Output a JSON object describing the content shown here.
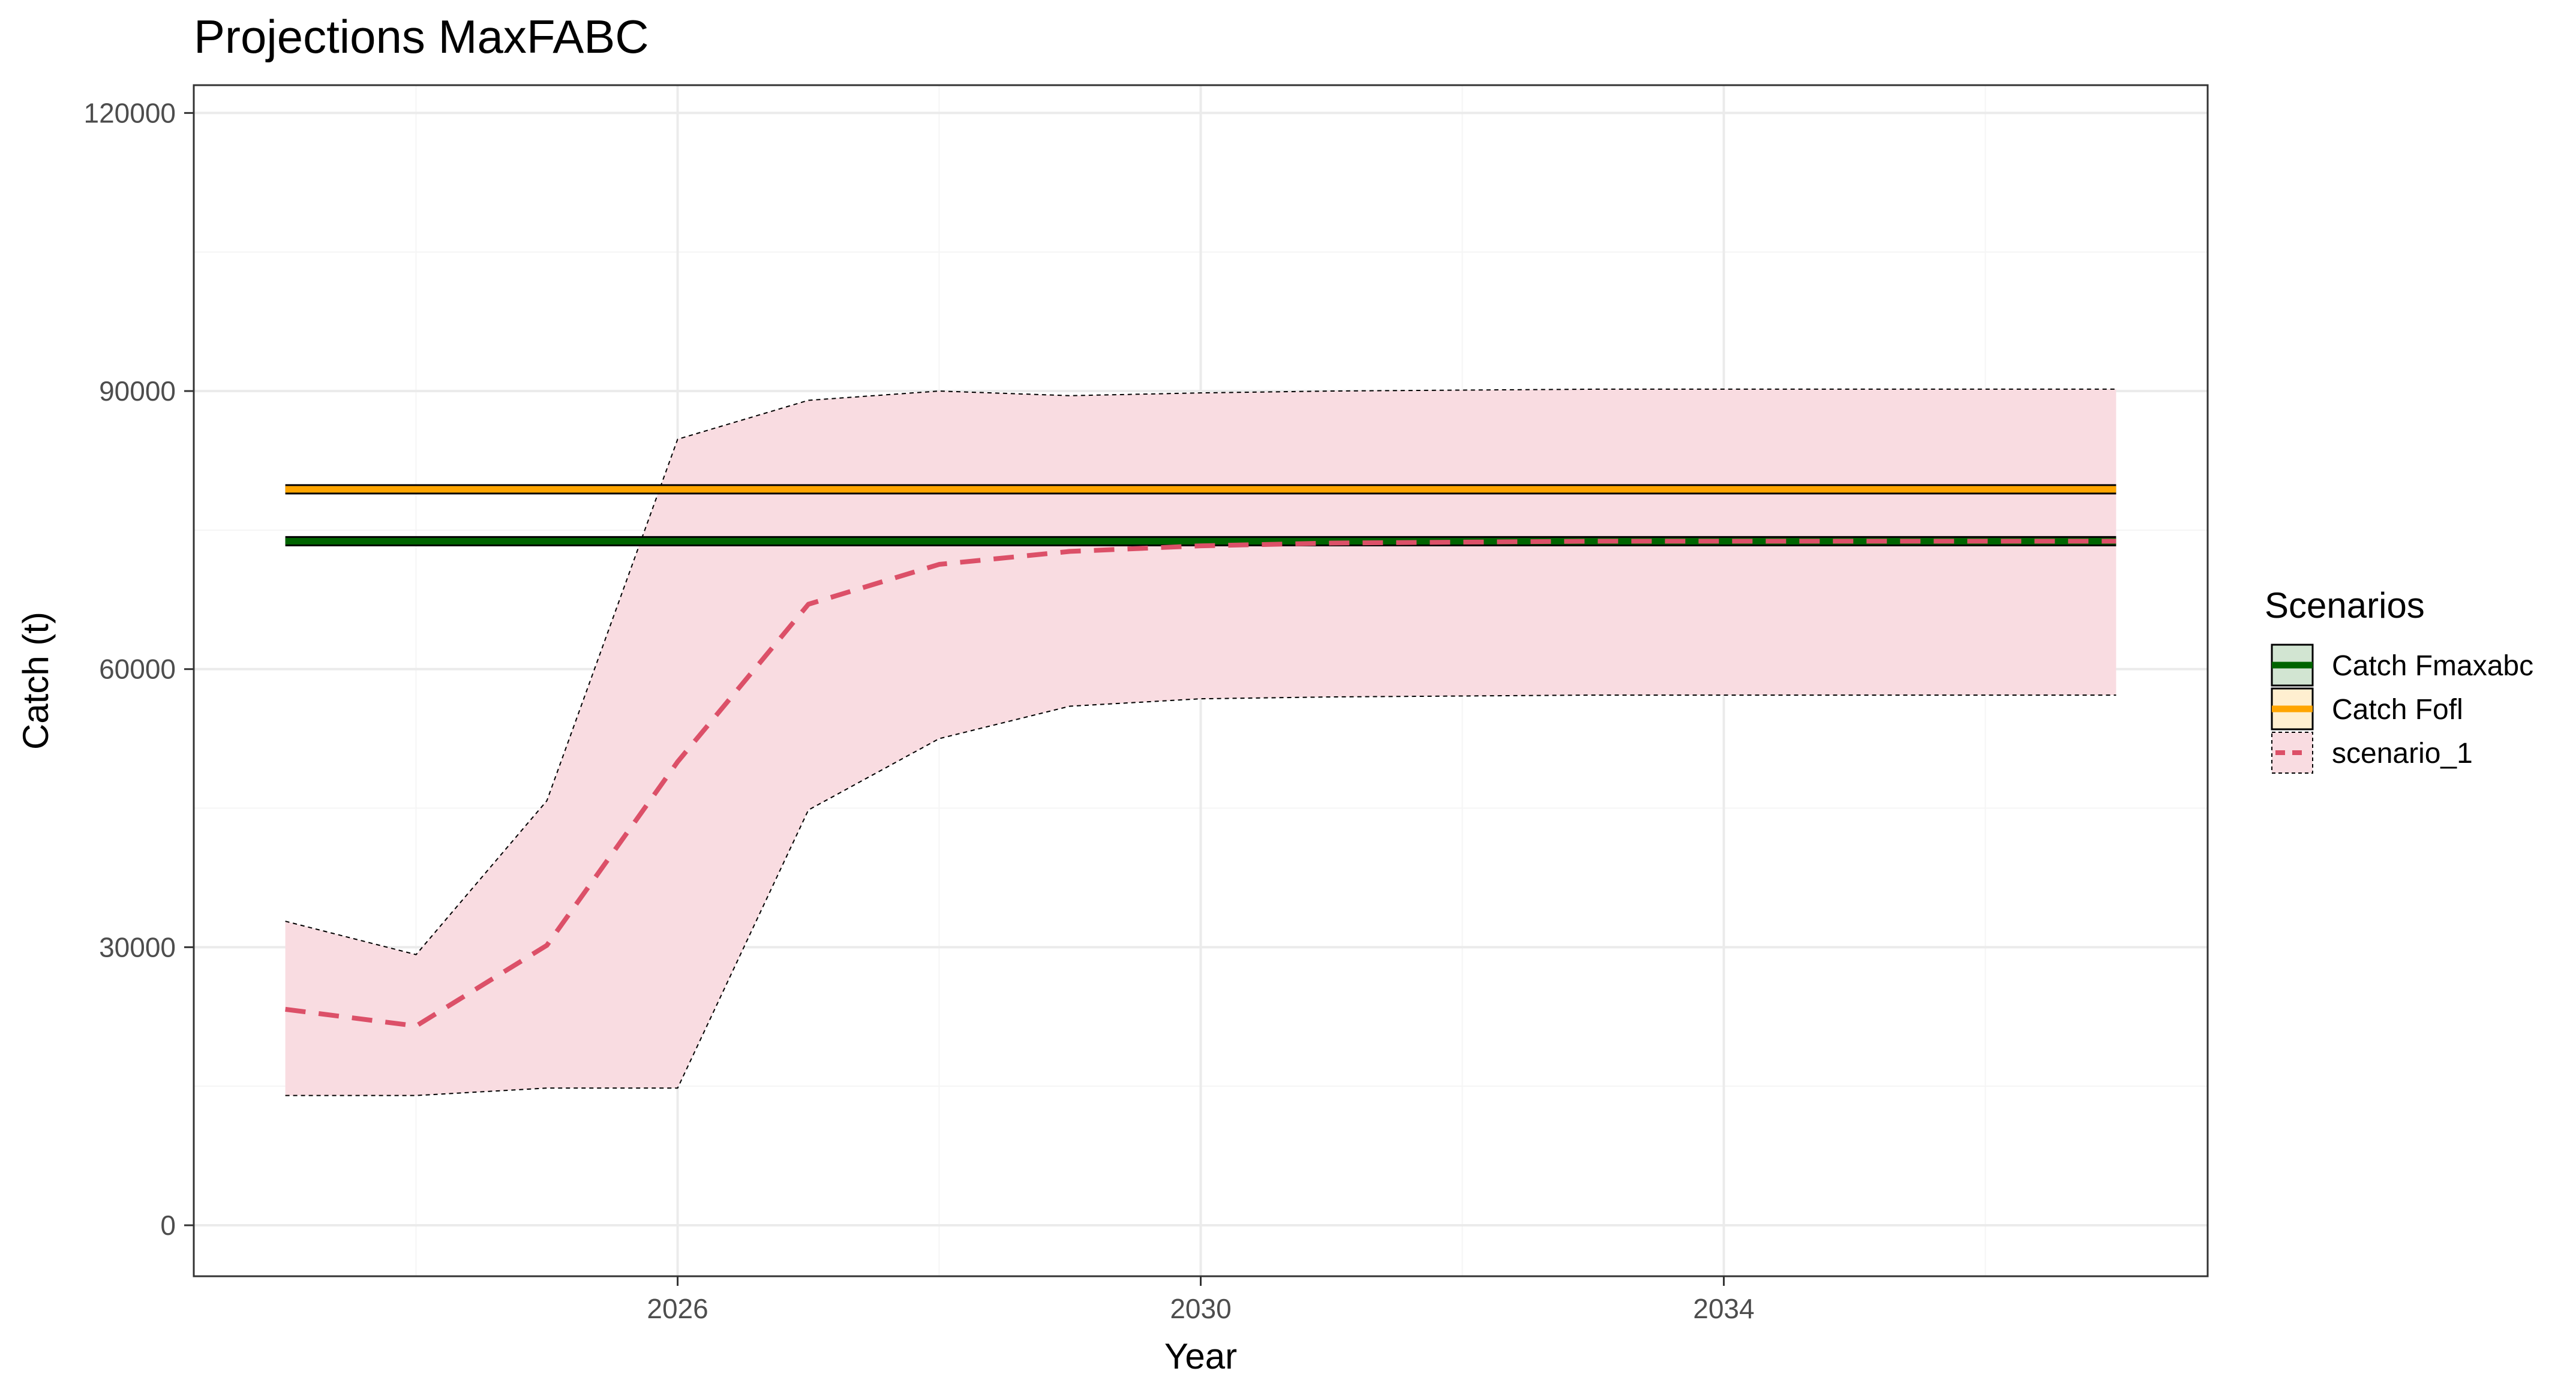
{
  "chart_data": {
    "type": "line",
    "title": "Projections MaxFABC",
    "xlabel": "Year",
    "ylabel": "Catch (t)",
    "xlim": [
      2022.3,
      2037.7
    ],
    "ylim": [
      -5500,
      123000
    ],
    "x_ticks": [
      2026,
      2030,
      2034
    ],
    "y_ticks": [
      0,
      30000,
      60000,
      90000,
      120000
    ],
    "grid": true,
    "legend": {
      "title": "Scenarios",
      "position": "right",
      "entries": [
        "Catch Fmaxabc",
        "Catch Fofl",
        "scenario_1"
      ]
    },
    "series": [
      {
        "name": "Catch Fmaxabc",
        "style": "solid",
        "color": "#006400",
        "x": [
          2023,
          2037
        ],
        "values": [
          73800,
          73800
        ]
      },
      {
        "name": "Catch Fofl",
        "style": "solid",
        "color": "#FFA500",
        "x": [
          2023,
          2037
        ],
        "values": [
          79400,
          79400
        ]
      },
      {
        "name": "scenario_1",
        "style": "dashed",
        "color": "#DC5068",
        "band_color": "#F9DCE1",
        "x": [
          2023,
          2024,
          2025,
          2026,
          2027,
          2028,
          2029,
          2030,
          2031,
          2032,
          2033,
          2034,
          2035,
          2036,
          2037
        ],
        "values": [
          23300,
          21500,
          30200,
          50000,
          67000,
          71300,
          72700,
          73300,
          73600,
          73700,
          73800,
          73800,
          73800,
          73800,
          73800
        ],
        "upper": [
          32800,
          29200,
          45800,
          84800,
          89000,
          90000,
          89500,
          89800,
          90000,
          90100,
          90200,
          90200,
          90200,
          90200,
          90200
        ],
        "lower": [
          14000,
          14000,
          14800,
          14800,
          44800,
          52500,
          56000,
          56800,
          57000,
          57100,
          57200,
          57200,
          57200,
          57200,
          57200
        ]
      }
    ]
  },
  "colors": {
    "panel_border": "#333333",
    "grid_major": "#EBEBEB",
    "grid_minor": "#F5F5F5"
  }
}
